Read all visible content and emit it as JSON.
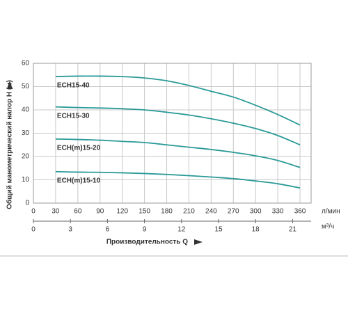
{
  "chart_data": {
    "type": "line",
    "x_label": "Производительность Q",
    "y_label": "Общий манометрический напор Н (м)",
    "x_unit": "л/мин",
    "x2_unit": "м³/ч",
    "x": [
      30,
      60,
      90,
      120,
      150,
      180,
      210,
      240,
      270,
      300,
      330,
      360
    ],
    "series": [
      {
        "name": "ECH15-40",
        "color": "#2a9a98",
        "values": [
          54.3,
          54.5,
          54.5,
          54.3,
          53.7,
          52.5,
          50.5,
          48,
          45.5,
          42,
          38,
          33.5
        ]
      },
      {
        "name": "ECH15-30",
        "color": "#2a9a98",
        "values": [
          41.3,
          41,
          40.8,
          40.5,
          40,
          39,
          37.8,
          36.2,
          34.3,
          32,
          29,
          25
        ]
      },
      {
        "name": "ECH(m)15-20",
        "color": "#2a9a98",
        "values": [
          27.5,
          27.3,
          27,
          26.5,
          26,
          25,
          24,
          23,
          21.8,
          20.3,
          18.3,
          15.3
        ]
      },
      {
        "name": "ECH(m)15-10",
        "color": "#2a9a98",
        "values": [
          13.5,
          13.3,
          13.2,
          13,
          12.7,
          12.3,
          11.8,
          11.2,
          10.5,
          9.5,
          8.3,
          6.5
        ]
      }
    ],
    "xlim": [
      0,
      375
    ],
    "xticks": [
      0,
      30,
      60,
      90,
      120,
      150,
      180,
      210,
      240,
      270,
      300,
      330,
      360
    ],
    "x2lim": [
      0,
      22.5
    ],
    "x2ticks": [
      0,
      3,
      6,
      9,
      12,
      15,
      18,
      21
    ],
    "ylim": [
      0,
      60
    ],
    "yticks": [
      0,
      10,
      20,
      30,
      40,
      50,
      60
    ],
    "grid": true
  }
}
